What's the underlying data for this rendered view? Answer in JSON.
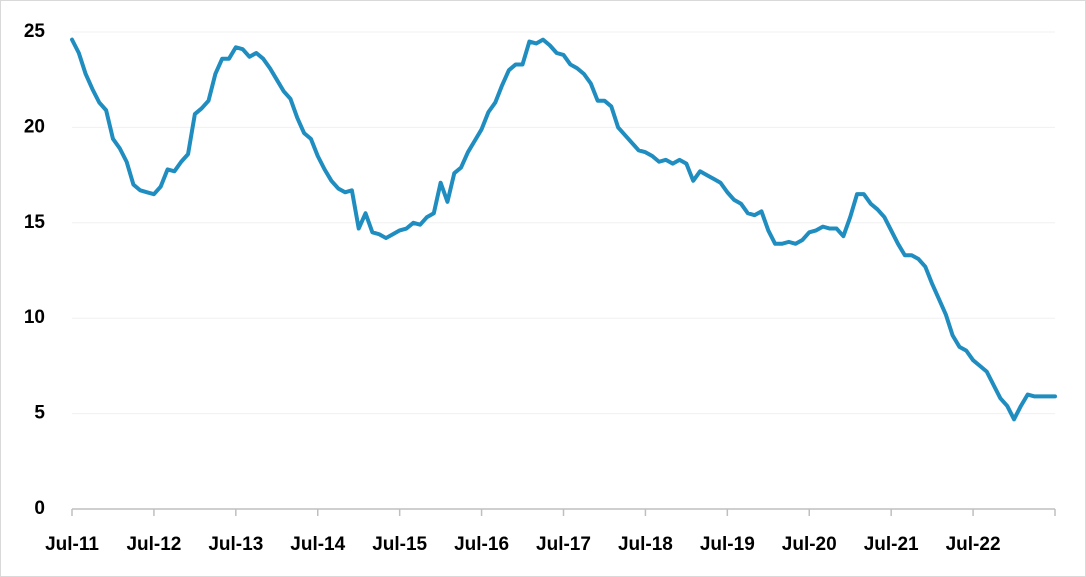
{
  "chart_data": {
    "type": "line",
    "categories": [
      "Jul-11",
      null,
      null,
      null,
      null,
      null,
      null,
      null,
      null,
      null,
      null,
      null,
      "Jul-12",
      null,
      null,
      null,
      null,
      null,
      null,
      null,
      null,
      null,
      null,
      null,
      "Jul-13",
      null,
      null,
      null,
      null,
      null,
      null,
      null,
      null,
      null,
      null,
      null,
      "Jul-14",
      null,
      null,
      null,
      null,
      null,
      null,
      null,
      null,
      null,
      null,
      null,
      "Jul-15",
      null,
      null,
      null,
      null,
      null,
      null,
      null,
      null,
      null,
      null,
      null,
      "Jul-16",
      null,
      null,
      null,
      null,
      null,
      null,
      null,
      null,
      null,
      null,
      null,
      "Jul-17",
      null,
      null,
      null,
      null,
      null,
      null,
      null,
      null,
      null,
      null,
      null,
      "Jul-18",
      null,
      null,
      null,
      null,
      null,
      null,
      null,
      null,
      null,
      null,
      null,
      "Jul-19",
      null,
      null,
      null,
      null,
      null,
      null,
      null,
      null,
      null,
      null,
      null,
      "Jul-20",
      null,
      null,
      null,
      null,
      null,
      null,
      null,
      null,
      null,
      null,
      null,
      "Jul-21",
      null,
      null,
      null,
      null,
      null,
      null,
      null,
      null,
      null,
      null,
      null,
      "Jul-22",
      null,
      null,
      null,
      null,
      null,
      null,
      null,
      null,
      null,
      null,
      null,
      null
    ],
    "values": [
      24.6,
      23.9,
      22.8,
      22.0,
      21.3,
      20.9,
      19.4,
      18.9,
      18.2,
      17.0,
      16.7,
      16.6,
      16.5,
      16.9,
      17.8,
      17.7,
      18.2,
      18.6,
      20.7,
      21.0,
      21.4,
      22.8,
      23.6,
      23.6,
      24.2,
      24.1,
      23.7,
      23.9,
      23.6,
      23.1,
      22.5,
      21.9,
      21.5,
      20.5,
      19.7,
      19.4,
      18.5,
      17.8,
      17.2,
      16.8,
      16.6,
      16.7,
      14.7,
      15.5,
      14.5,
      14.4,
      14.2,
      14.4,
      14.6,
      14.7,
      15.0,
      14.9,
      15.3,
      15.5,
      17.1,
      16.1,
      17.6,
      17.9,
      18.7,
      19.3,
      19.9,
      20.8,
      21.3,
      22.2,
      23.0,
      23.3,
      23.3,
      24.5,
      24.4,
      24.6,
      24.3,
      23.9,
      23.8,
      23.3,
      23.1,
      22.8,
      22.3,
      21.4,
      21.4,
      21.1,
      20.0,
      19.6,
      19.2,
      18.8,
      18.7,
      18.5,
      18.2,
      18.3,
      18.1,
      18.3,
      18.1,
      17.2,
      17.7,
      17.5,
      17.3,
      17.1,
      16.6,
      16.2,
      16.0,
      15.5,
      15.4,
      15.6,
      14.6,
      13.9,
      13.9,
      14.0,
      13.9,
      14.1,
      14.5,
      14.6,
      14.8,
      14.7,
      14.7,
      14.3,
      15.3,
      16.5,
      16.5,
      16.0,
      15.7,
      15.3,
      14.6,
      13.9,
      13.3,
      13.3,
      13.1,
      12.7,
      11.8,
      11.0,
      10.2,
      9.1,
      8.5,
      8.3,
      7.8,
      7.5,
      7.2,
      6.5,
      5.8,
      5.4,
      4.7,
      5.4,
      6.0,
      5.9,
      5.9,
      5.9,
      5.9
    ],
    "color": "#1f8dbf",
    "ylim": [
      0,
      25
    ],
    "yticks": [
      0,
      5,
      10,
      15,
      20,
      25
    ],
    "grid": true
  }
}
